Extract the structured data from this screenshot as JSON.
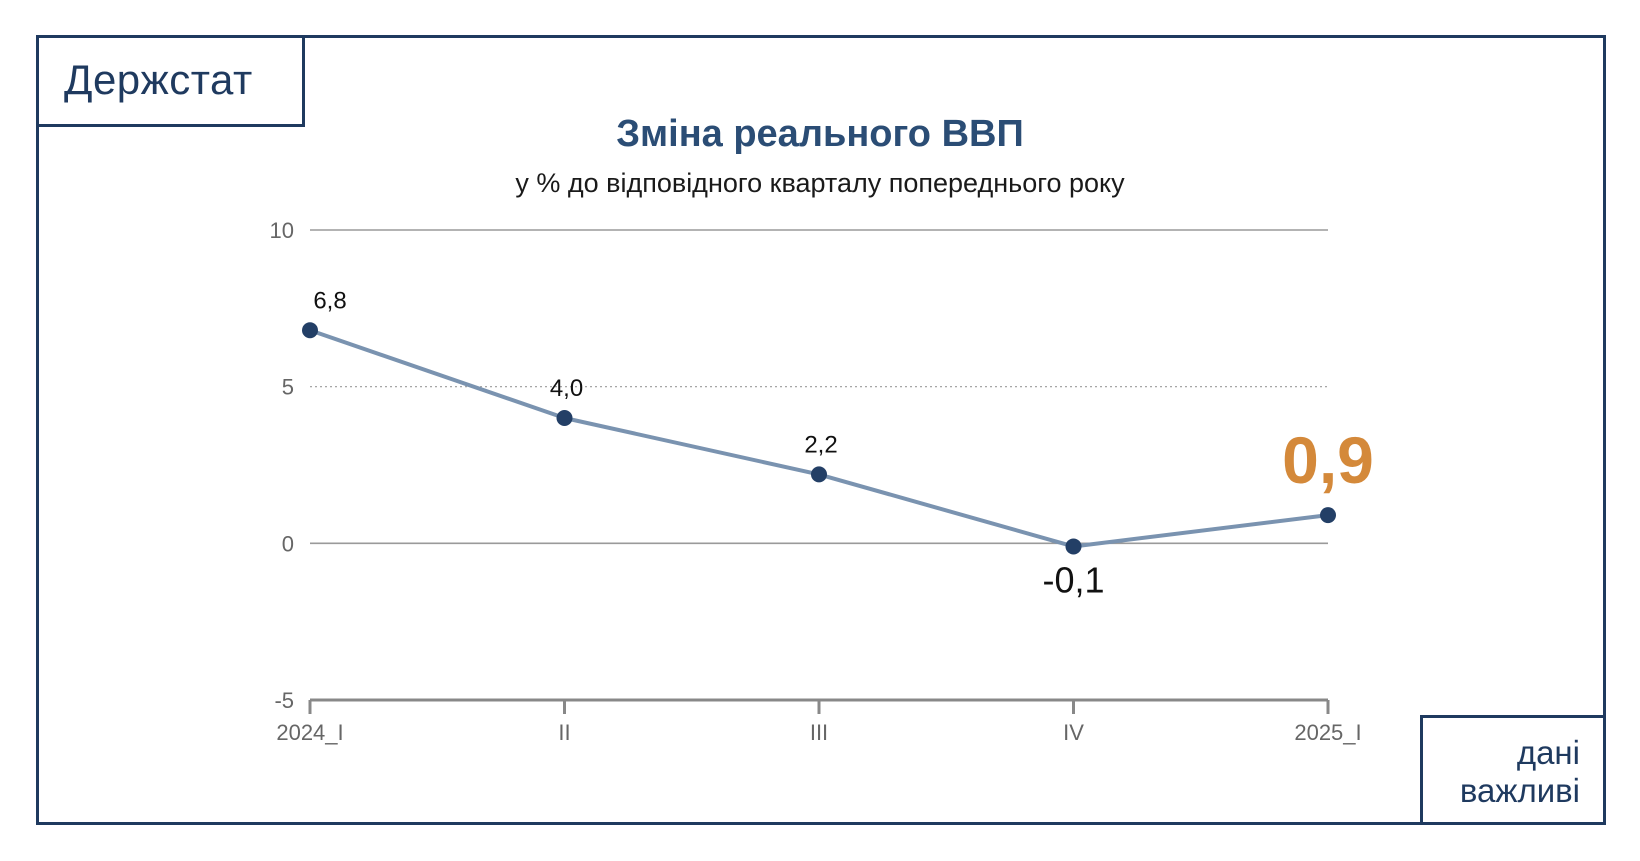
{
  "brand": {
    "logo": "Держстат",
    "badge_line1": "дані",
    "badge_line2": "важливі"
  },
  "colors": {
    "frame": "#1f3a5f",
    "title": "#2b4d75",
    "line": "#7a93b0",
    "point": "#233f66",
    "highlight": "#d4893a",
    "grid": "#9a9a9a"
  },
  "chart_data": {
    "type": "line",
    "title": "Зміна реального ВВП",
    "subtitle": "у % до відповідного кварталу попереднього року",
    "categories": [
      "2024_I",
      "II",
      "III",
      "IV",
      "2025_I"
    ],
    "values": [
      6.8,
      4.0,
      2.2,
      -0.1,
      0.9
    ],
    "data_labels": [
      "6,8",
      "4,0",
      "2,2",
      "-0,1",
      "0,9"
    ],
    "yticks": [
      10,
      5,
      0,
      -5
    ],
    "ylim": [
      -5,
      10
    ],
    "grid": true,
    "highlight_last": true
  }
}
